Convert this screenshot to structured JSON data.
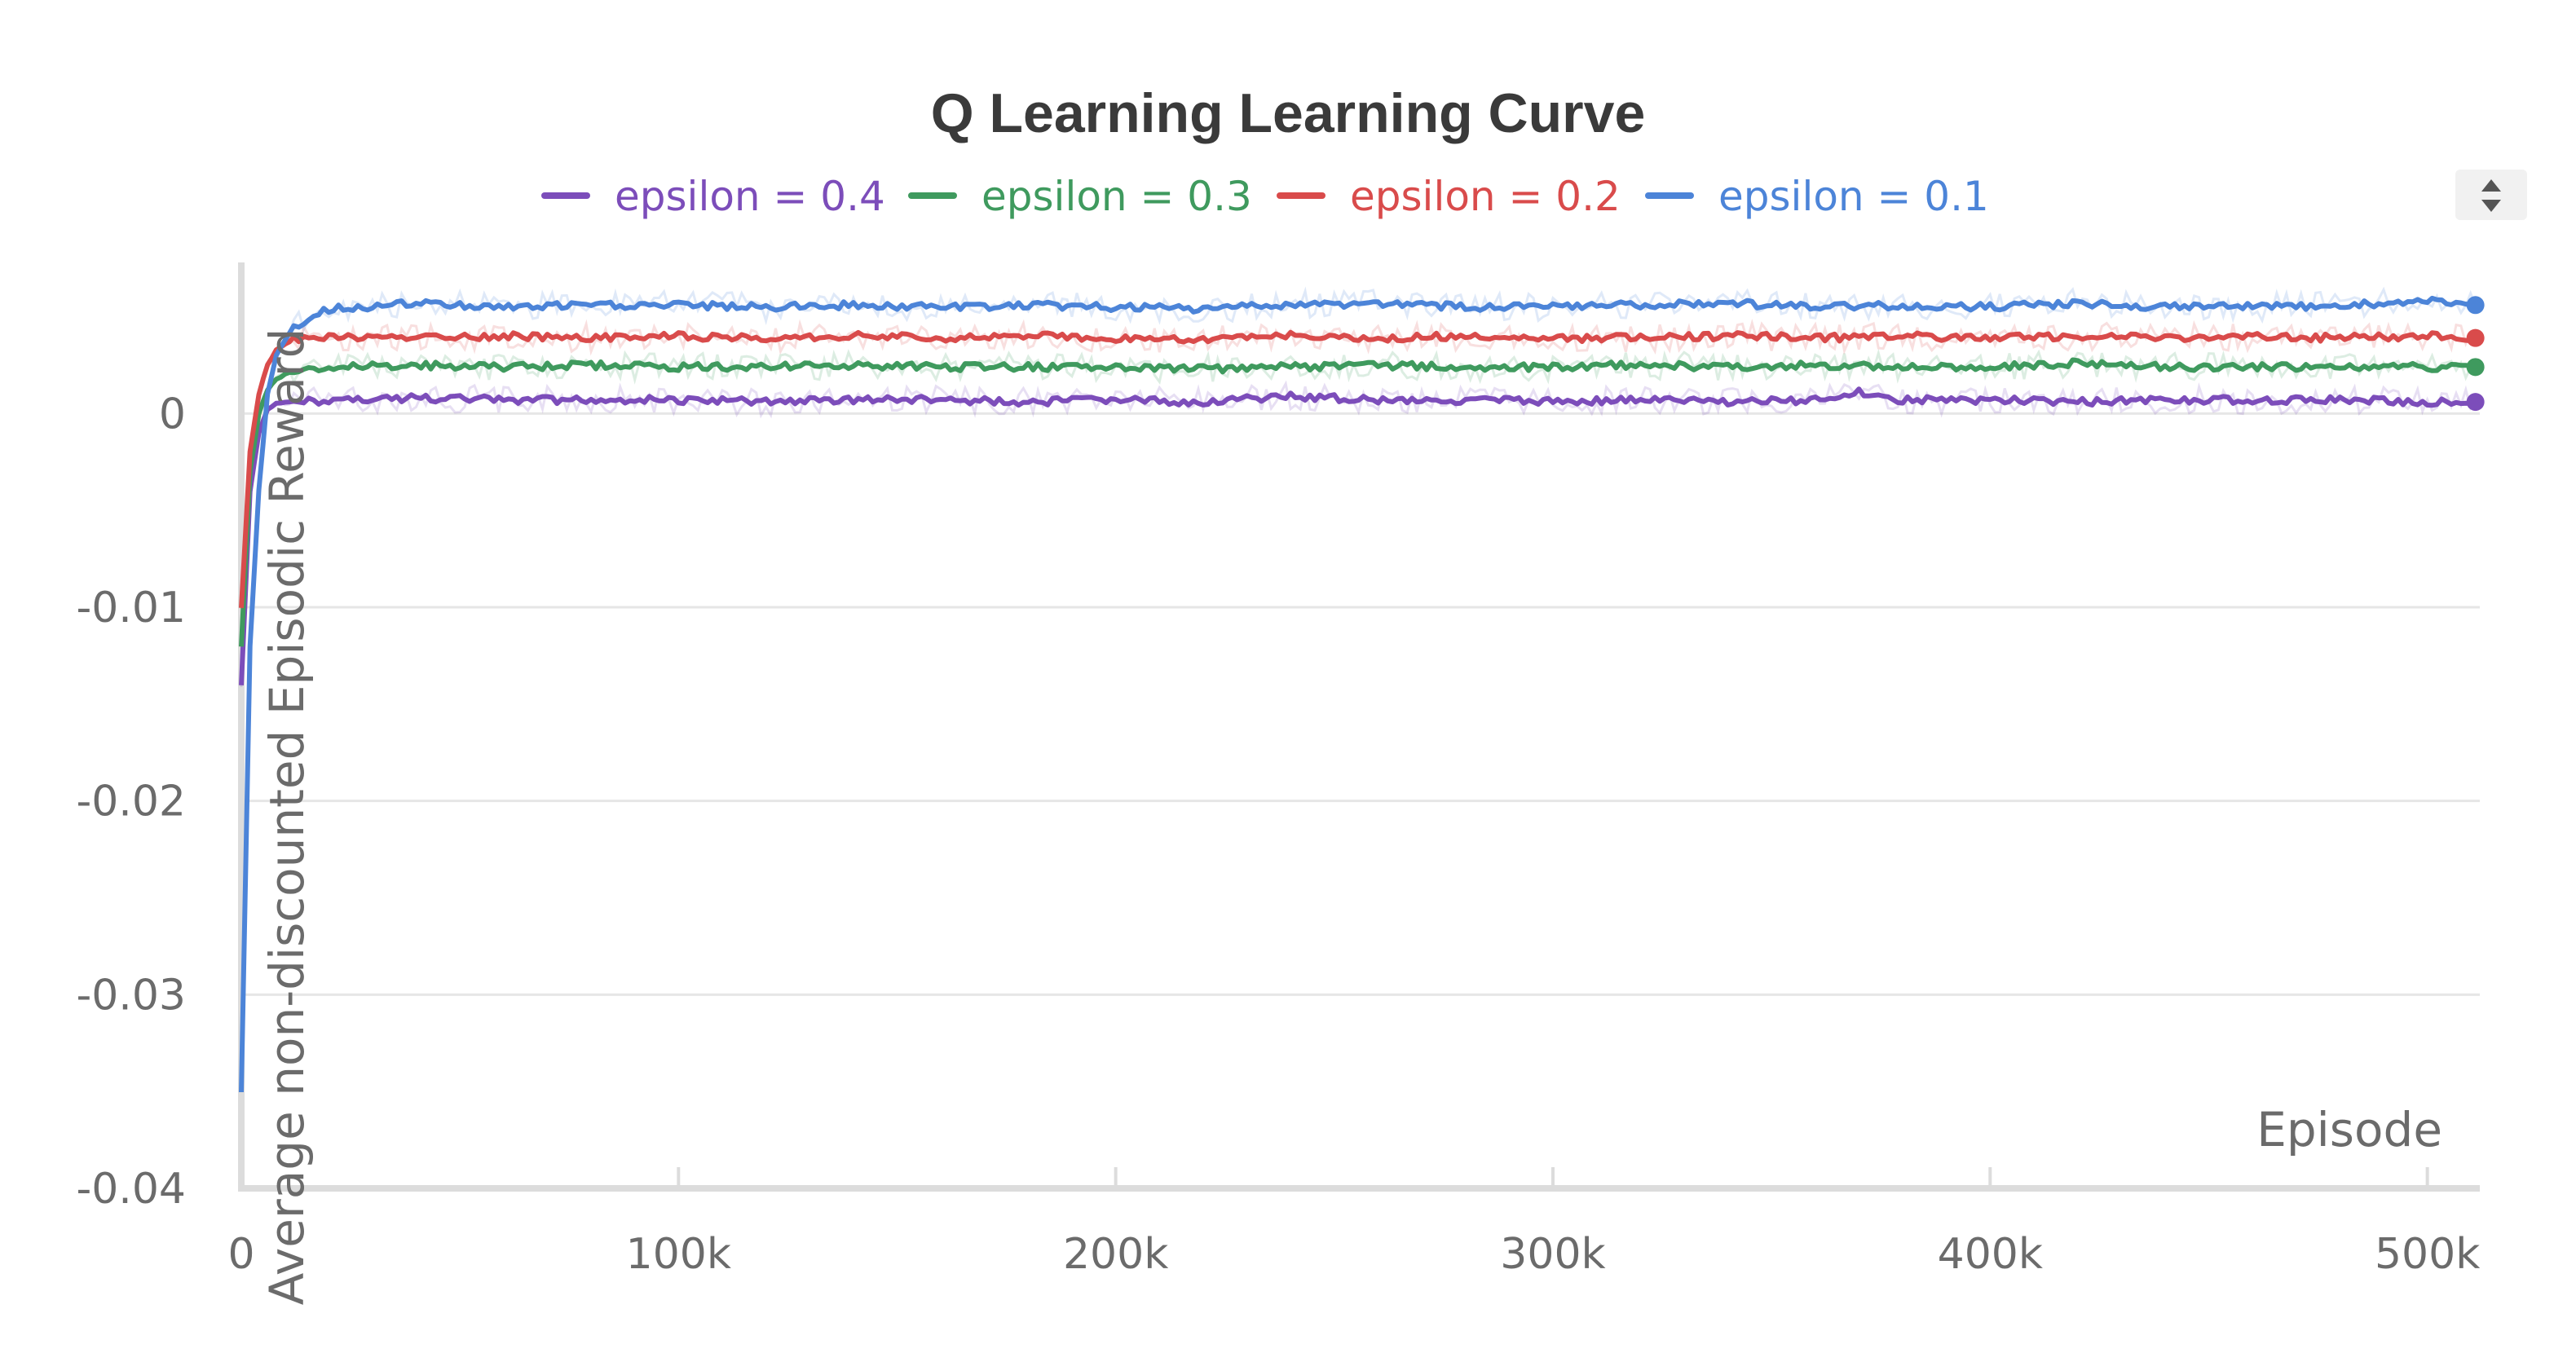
{
  "chart_data": {
    "type": "line",
    "title": "Q Learning Learning Curve",
    "xlabel": "Episode",
    "ylabel": "Average non-discounted Episodic Reward",
    "xlim": [
      0,
      512000
    ],
    "ylim": [
      -0.04,
      0.0078
    ],
    "x_ticks": [
      {
        "value": 0,
        "label": "0"
      },
      {
        "value": 100000,
        "label": "100k"
      },
      {
        "value": 200000,
        "label": "200k"
      },
      {
        "value": 300000,
        "label": "300k"
      },
      {
        "value": 400000,
        "label": "400k"
      },
      {
        "value": 500000,
        "label": "500k"
      }
    ],
    "y_ticks": [
      {
        "value": 0,
        "label": "0"
      },
      {
        "value": -0.01,
        "label": "-0.01"
      },
      {
        "value": -0.02,
        "label": "-0.02"
      },
      {
        "value": -0.03,
        "label": "-0.03"
      },
      {
        "value": -0.04,
        "label": "-0.04"
      }
    ],
    "grid": true,
    "legend_position": "top-center",
    "series": [
      {
        "name": "epsilon = 0.4",
        "color": "#7c4dba",
        "x": [
          0,
          2000,
          4000,
          6000,
          8000,
          12000,
          20000,
          40000,
          60000,
          80000,
          100000,
          120000,
          140000,
          160000,
          180000,
          200000,
          220000,
          240000,
          260000,
          280000,
          300000,
          320000,
          340000,
          360000,
          370000,
          380000,
          400000,
          420000,
          440000,
          460000,
          480000,
          500000,
          511000
        ],
        "values": [
          -0.014,
          -0.004,
          -0.001,
          0.0002,
          0.0005,
          0.0006,
          0.0007,
          0.0008,
          0.0007,
          0.0007,
          0.0007,
          0.0006,
          0.0007,
          0.0007,
          0.0006,
          0.0007,
          0.0006,
          0.0009,
          0.0007,
          0.0007,
          0.0006,
          0.0007,
          0.0006,
          0.0007,
          0.0011,
          0.0007,
          0.0007,
          0.0006,
          0.0007,
          0.0007,
          0.0007,
          0.0006,
          0.0006
        ]
      },
      {
        "name": "epsilon = 0.3",
        "color": "#3f9a5e",
        "x": [
          0,
          2000,
          4000,
          6000,
          8000,
          12000,
          20000,
          40000,
          60000,
          80000,
          100000,
          120000,
          140000,
          160000,
          180000,
          200000,
          220000,
          240000,
          260000,
          280000,
          300000,
          320000,
          340000,
          360000,
          380000,
          400000,
          420000,
          440000,
          460000,
          480000,
          500000,
          511000
        ],
        "values": [
          -0.012,
          -0.003,
          0.0,
          0.0012,
          0.0018,
          0.0022,
          0.0024,
          0.0025,
          0.0024,
          0.0025,
          0.0024,
          0.0024,
          0.0025,
          0.0024,
          0.0024,
          0.0024,
          0.0023,
          0.0024,
          0.0025,
          0.0024,
          0.0024,
          0.0025,
          0.0024,
          0.0025,
          0.0024,
          0.0024,
          0.0026,
          0.0024,
          0.0024,
          0.0024,
          0.0024,
          0.0024
        ]
      },
      {
        "name": "epsilon = 0.2",
        "color": "#d94b4b",
        "x": [
          0,
          2000,
          4000,
          6000,
          8000,
          12000,
          20000,
          40000,
          60000,
          80000,
          100000,
          120000,
          140000,
          160000,
          180000,
          200000,
          220000,
          240000,
          260000,
          280000,
          300000,
          320000,
          340000,
          360000,
          380000,
          400000,
          420000,
          440000,
          460000,
          480000,
          500000,
          511000
        ],
        "values": [
          -0.01,
          -0.002,
          0.001,
          0.0025,
          0.0033,
          0.0038,
          0.004,
          0.0039,
          0.004,
          0.0039,
          0.004,
          0.0039,
          0.004,
          0.0039,
          0.004,
          0.0039,
          0.0038,
          0.004,
          0.0039,
          0.004,
          0.0039,
          0.0039,
          0.004,
          0.0039,
          0.004,
          0.0039,
          0.004,
          0.0039,
          0.004,
          0.0039,
          0.004,
          0.0039
        ]
      },
      {
        "name": "epsilon = 0.1",
        "color": "#4c84d8",
        "x": [
          0,
          2000,
          4000,
          6000,
          8000,
          12000,
          20000,
          40000,
          60000,
          80000,
          100000,
          120000,
          140000,
          160000,
          180000,
          200000,
          220000,
          240000,
          260000,
          280000,
          300000,
          320000,
          340000,
          360000,
          380000,
          400000,
          420000,
          440000,
          460000,
          480000,
          500000,
          511000
        ],
        "values": [
          -0.035,
          -0.012,
          -0.004,
          0.001,
          0.003,
          0.0045,
          0.0054,
          0.0057,
          0.0055,
          0.0056,
          0.0056,
          0.0055,
          0.0056,
          0.0055,
          0.0056,
          0.0055,
          0.0054,
          0.0056,
          0.0057,
          0.0055,
          0.0055,
          0.0056,
          0.0057,
          0.0055,
          0.0056,
          0.0055,
          0.0057,
          0.0055,
          0.0055,
          0.0056,
          0.0058,
          0.0056
        ]
      }
    ]
  }
}
